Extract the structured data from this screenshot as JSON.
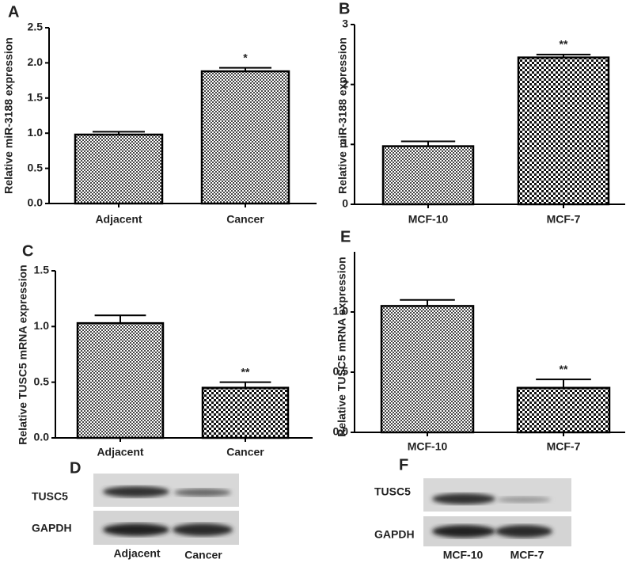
{
  "chart_data": [
    {
      "type": "bar",
      "panel": "A",
      "y_label": "Relative miR-3188 expression",
      "categories": [
        "Adjacent",
        "Cancer"
      ],
      "values": [
        0.98,
        1.88
      ],
      "errors": [
        0.04,
        0.05
      ],
      "significance": [
        null,
        "*"
      ],
      "ylim": [
        0,
        2.5
      ],
      "yticks": [
        {
          "value": 0,
          "label": "0.0"
        },
        0.5,
        {
          "value": 1,
          "label": "1.0"
        },
        1.5,
        {
          "value": 2,
          "label": "2.0"
        },
        2.5
      ]
    },
    {
      "type": "bar",
      "panel": "B",
      "y_label": "Relative miR-3188 expression",
      "categories": [
        "MCF-10",
        "MCF-7"
      ],
      "values": [
        0.97,
        2.45
      ],
      "errors": [
        0.08,
        0.05
      ],
      "significance": [
        null,
        "**"
      ],
      "ylim": [
        0,
        3
      ],
      "yticks": [
        0,
        1,
        2,
        3
      ]
    },
    {
      "type": "bar",
      "panel": "C",
      "y_label": "Relative TUSC5 mRNA expression",
      "categories": [
        "Adjacent",
        "Cancer"
      ],
      "values": [
        1.03,
        0.45
      ],
      "errors": [
        0.07,
        0.05
      ],
      "significance": [
        null,
        "**"
      ],
      "ylim": [
        0,
        1.5
      ],
      "yticks": [
        {
          "value": 0,
          "label": "0.0"
        },
        0.5,
        {
          "value": 1,
          "label": "1.0"
        },
        1.5
      ]
    },
    {
      "type": "bar",
      "panel": "E",
      "y_label": "Relative TUSC5 mRNA expression",
      "categories": [
        "MCF-10",
        "MCF-7"
      ],
      "values": [
        1.05,
        0.37
      ],
      "errors": [
        0.05,
        0.07
      ],
      "significance": [
        null,
        "**"
      ],
      "ylim": [
        0,
        1.5
      ],
      "yticks": [
        {
          "value": 0,
          "label": "0.0"
        },
        0.5,
        {
          "value": 1,
          "label": "1.0"
        }
      ]
    }
  ],
  "blots": [
    {
      "panel": "D",
      "rows": [
        "TUSC5",
        "GAPDH"
      ],
      "lanes": [
        "Adjacent",
        "Cancer"
      ]
    },
    {
      "panel": "F",
      "rows": [
        "TUSC5",
        "GAPDH"
      ],
      "lanes": [
        "MCF-10",
        "MCF-7"
      ]
    }
  ]
}
